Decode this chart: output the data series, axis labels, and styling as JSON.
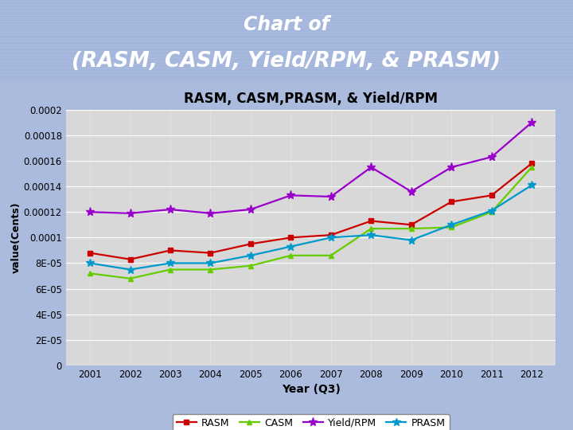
{
  "title_line1": "Chart of",
  "title_line2": "(RASM, CASM, Yield/RPM, & PRASM)",
  "chart_title": "RASM, CASM,PRASM, & Yield/RPM",
  "xlabel": "Year (Q3)",
  "ylabel": "value(Cents)",
  "years": [
    2001,
    2002,
    2003,
    2004,
    2005,
    2006,
    2007,
    2008,
    2009,
    2010,
    2011,
    2012
  ],
  "RASM": [
    8.8e-05,
    8.3e-05,
    9e-05,
    8.8e-05,
    9.5e-05,
    0.0001,
    0.000102,
    0.000113,
    0.00011,
    0.000128,
    0.000133,
    0.000158
  ],
  "CASM": [
    7.2e-05,
    6.8e-05,
    7.5e-05,
    7.5e-05,
    7.8e-05,
    8.6e-05,
    8.6e-05,
    0.000107,
    0.000107,
    0.000108,
    0.00012,
    0.000155
  ],
  "YieldRPM": [
    0.00012,
    0.000119,
    0.000122,
    0.000119,
    0.000122,
    0.000133,
    0.000132,
    0.000155,
    0.000136,
    0.000155,
    0.000163,
    0.00019
  ],
  "PRASM": [
    8e-05,
    7.5e-05,
    8e-05,
    8e-05,
    8.6e-05,
    9.3e-05,
    0.0001,
    0.000102,
    9.8e-05,
    0.00011,
    0.000121,
    0.000141
  ],
  "rasm_color": "#cc0000",
  "casm_color": "#66cc00",
  "yield_color": "#9900cc",
  "prasm_color": "#0099cc",
  "header_bg": "#6688cc",
  "outer_bg": "#aabbdd",
  "chart_panel_bg": "#f0f0f0",
  "plot_bg": "#d8d8d8",
  "ylim": [
    0,
    0.0002
  ],
  "yticks": [
    0,
    2e-05,
    4e-05,
    6e-05,
    8e-05,
    0.0001,
    0.00012,
    0.00014,
    0.00016,
    0.00018,
    0.0002
  ],
  "ytick_labels": [
    "0",
    "2E-05",
    "4E-05",
    "6E-05",
    "8E-05",
    "0.0001",
    "0.00012",
    "0.00014",
    "0.00016",
    "0.00018",
    "0.0002"
  ]
}
